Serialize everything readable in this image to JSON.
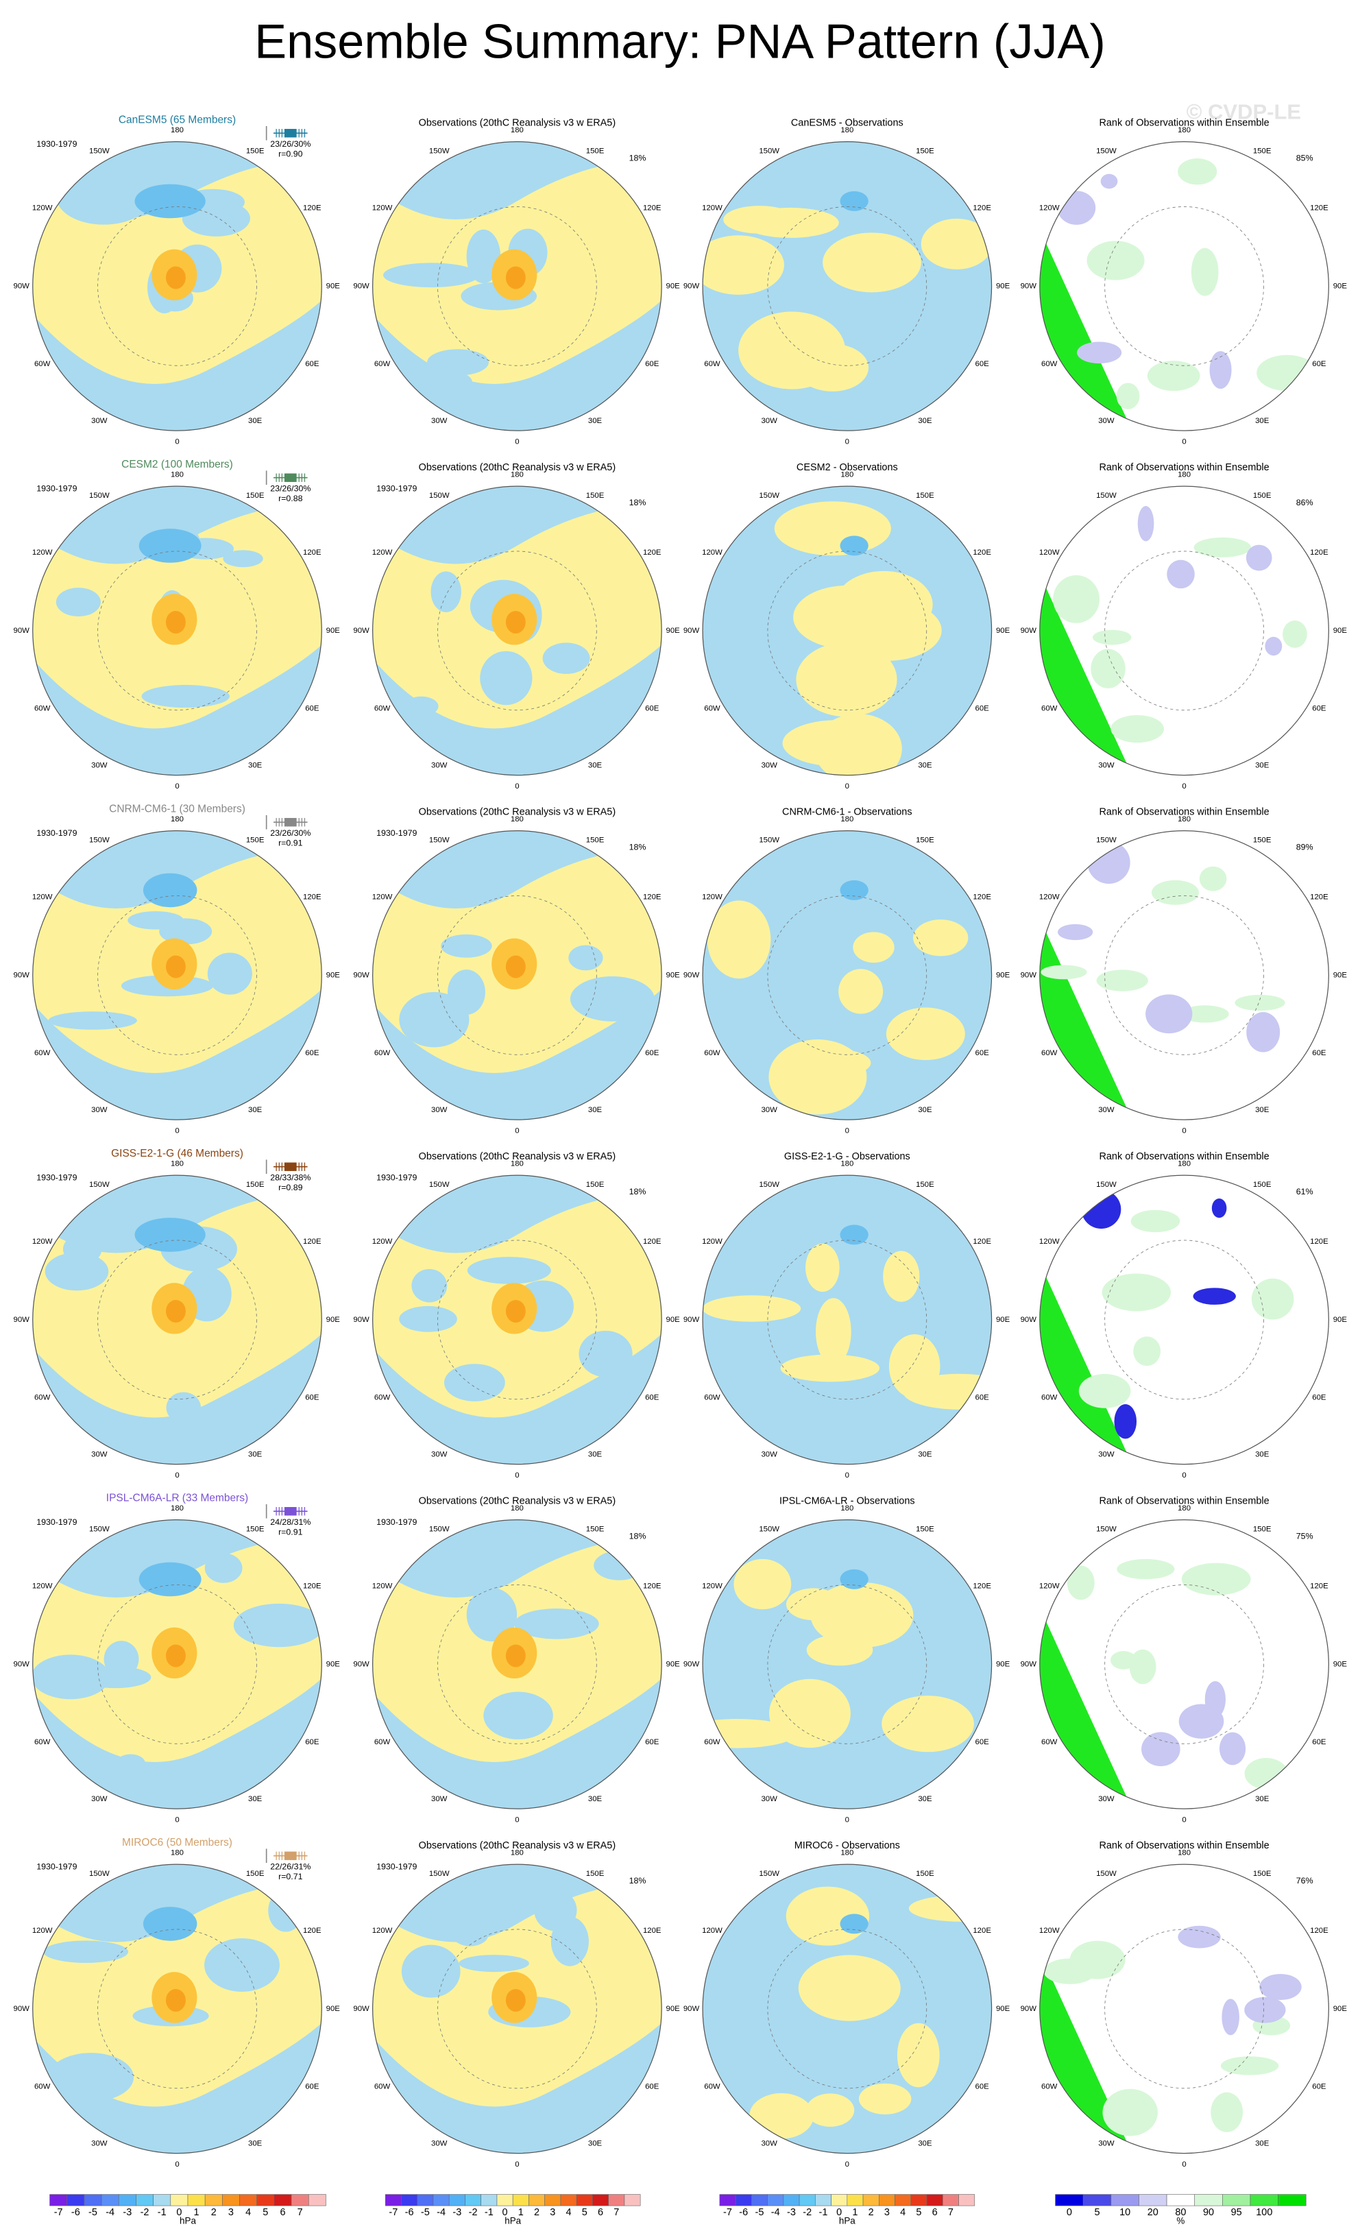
{
  "title": "Ensemble Summary: PNA Pattern (JJA)",
  "watermark": "© CVDP-LE",
  "longitude_labels": [
    "180",
    "150E",
    "120E",
    "90E",
    "60E",
    "30E",
    "0",
    "30W",
    "60W",
    "90W",
    "120W",
    "150W"
  ],
  "rows": [
    {
      "model": "CanESM5 (65 Members)",
      "model_color": "#1e7ea0",
      "period": "1930-1979",
      "stats": "23/26/30%",
      "r": "r=0.90",
      "obs_title": "Observations (20thC Reanalysis v3 w ERA5)",
      "obs_pct": "18%",
      "diff_title": "CanESM5 - Observations",
      "rank_title": "Rank of Observations within Ensemble",
      "rank_pct": "85%"
    },
    {
      "model": "CESM2 (100 Members)",
      "model_color": "#4f8a5c",
      "period": "1930-1979",
      "stats": "23/26/30%",
      "r": "r=0.88",
      "obs_title": "Observations (20thC Reanalysis v3 w ERA5)",
      "obs_period": "1930-1979",
      "obs_pct": "18%",
      "diff_title": "CESM2 - Observations",
      "rank_title": "Rank of Observations within Ensemble",
      "rank_pct": "86%"
    },
    {
      "model": "CNRM-CM6-1 (30 Members)",
      "model_color": "#888888",
      "period": "1930-1979",
      "stats": "23/26/30%",
      "r": "r=0.91",
      "obs_title": "Observations (20thC Reanalysis v3 w ERA5)",
      "obs_period": "1930-1979",
      "obs_pct": "18%",
      "diff_title": "CNRM-CM6-1 - Observations",
      "rank_title": "Rank of Observations within Ensemble",
      "rank_pct": "89%"
    },
    {
      "model": "GISS-E2-1-G (46 Members)",
      "model_color": "#8b4513",
      "period": "1930-1979",
      "stats": "28/33/38%",
      "r": "r=0.89",
      "obs_title": "Observations (20thC Reanalysis v3 w ERA5)",
      "obs_period": "1930-1979",
      "obs_pct": "18%",
      "diff_title": "GISS-E2-1-G - Observations",
      "rank_title": "Rank of Observations within Ensemble",
      "rank_pct": "61%"
    },
    {
      "model": "IPSL-CM6A-LR (33 Members)",
      "model_color": "#7b52d6",
      "period": "1930-1979",
      "stats": "24/28/31%",
      "r": "r=0.91",
      "obs_title": "Observations (20thC Reanalysis v3 w ERA5)",
      "obs_period": "1930-1979",
      "obs_pct": "18%",
      "diff_title": "IPSL-CM6A-LR - Observations",
      "rank_title": "Rank of Observations within Ensemble",
      "rank_pct": "75%"
    },
    {
      "model": "MIROC6 (50 Members)",
      "model_color": "#d2a06a",
      "period": "1930-1979",
      "stats": "22/26/31%",
      "r": "r=0.71",
      "obs_title": "Observations (20thC Reanalysis v3 w ERA5)",
      "obs_period": "1930-1979",
      "obs_pct": "18%",
      "diff_title": "MIROC6 - Observations",
      "rank_title": "Rank of Observations within Ensemble",
      "rank_pct": "76%"
    }
  ],
  "pressure_colorbar": {
    "labels": [
      -7,
      -6,
      -5,
      -4,
      -3,
      -2,
      -1,
      0,
      1,
      2,
      3,
      4,
      5,
      6,
      7
    ],
    "unit": "hPa",
    "colors": [
      "#7a1fe6",
      "#3b3bf0",
      "#4f6ff5",
      "#5a8ff7",
      "#52b0f5",
      "#62c8f4",
      "#a8daf0",
      "#fdf29b",
      "#fce04a",
      "#fcb93a",
      "#f7931e",
      "#f46a1e",
      "#e83a1a",
      "#d41a1a",
      "#f08080",
      "#f9c0c0"
    ]
  },
  "rank_colorbar": {
    "labels": [
      0,
      5,
      10,
      20,
      80,
      90,
      95,
      100
    ],
    "unit": "%",
    "colors": [
      "#0000e0",
      "#4a4ae8",
      "#9a9af0",
      "#d0d0f5",
      "#ffffff",
      "#d8f7d8",
      "#a0f0a0",
      "#40e840",
      "#00e000"
    ]
  }
}
